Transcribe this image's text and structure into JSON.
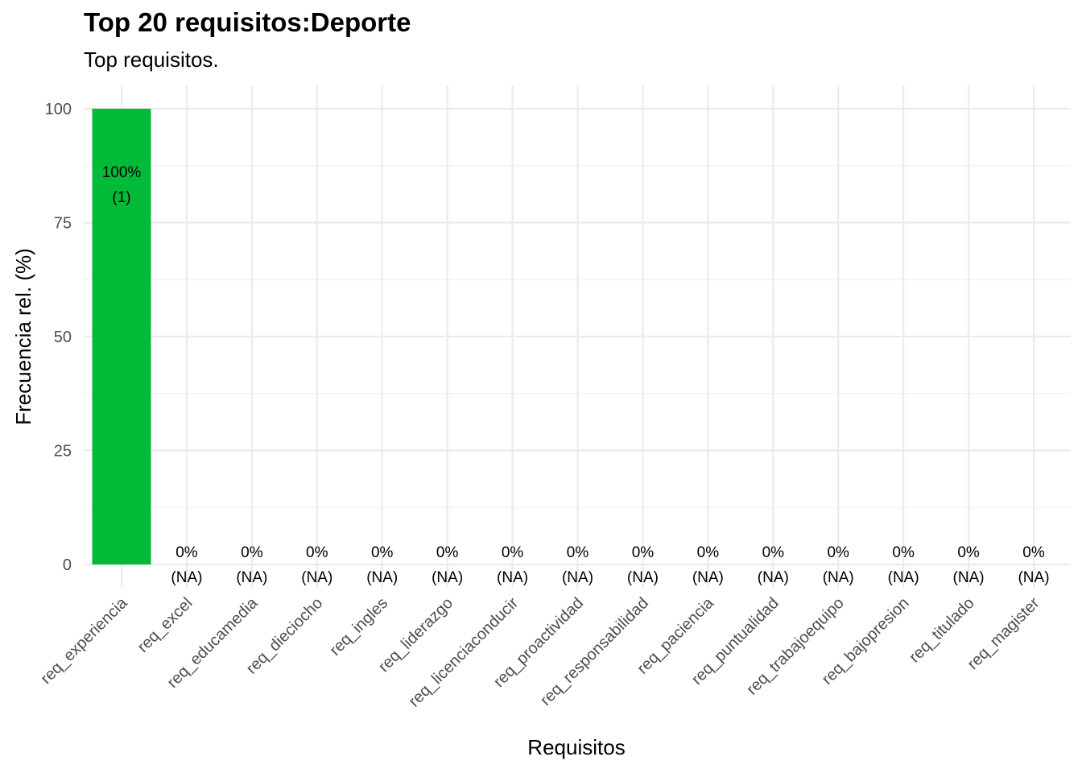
{
  "header": {
    "title": "Top 20 requisitos:Deporte",
    "subtitle": "Top requisitos."
  },
  "chart_data": {
    "type": "bar",
    "title": "Top 20 requisitos:Deporte",
    "subtitle": "Top requisitos.",
    "xlabel": "Requisitos",
    "ylabel": "Frecuencia rel. (%)",
    "ylim": [
      0,
      100
    ],
    "yticks": [
      0,
      25,
      50,
      75,
      100
    ],
    "grid": true,
    "bar_color": "#00BA38",
    "categories": [
      "req_experiencia",
      "req_excel",
      "req_educamedia",
      "req_dieciocho",
      "req_ingles",
      "req_liderazgo",
      "req_licenciaconducir",
      "req_proactividad",
      "req_responsabilidad",
      "req_paciencia",
      "req_puntualidad",
      "req_trabajoequipo",
      "req_bajopresion",
      "req_titulado",
      "req_magister"
    ],
    "values": [
      100,
      0,
      0,
      0,
      0,
      0,
      0,
      0,
      0,
      0,
      0,
      0,
      0,
      0,
      0
    ],
    "labels_pct": [
      "100%",
      "0%",
      "0%",
      "0%",
      "0%",
      "0%",
      "0%",
      "0%",
      "0%",
      "0%",
      "0%",
      "0%",
      "0%",
      "0%",
      "0%"
    ],
    "labels_count": [
      "(1)",
      "(NA)",
      "(NA)",
      "(NA)",
      "(NA)",
      "(NA)",
      "(NA)",
      "(NA)",
      "(NA)",
      "(NA)",
      "(NA)",
      "(NA)",
      "(NA)",
      "(NA)",
      "(NA)"
    ]
  }
}
